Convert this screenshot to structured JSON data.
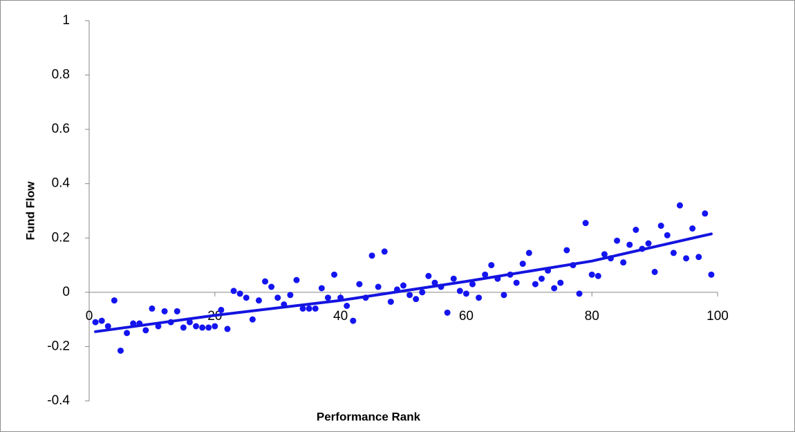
{
  "chart_data": {
    "type": "scatter",
    "x_label": "Performance Rank",
    "y_label": "Fund Flow",
    "x": [
      1,
      2,
      3,
      4,
      5,
      6,
      7,
      8,
      9,
      10,
      11,
      12,
      13,
      14,
      15,
      16,
      17,
      18,
      19,
      20,
      21,
      22,
      23,
      24,
      25,
      26,
      27,
      28,
      29,
      30,
      31,
      32,
      33,
      34,
      35,
      36,
      37,
      38,
      39,
      40,
      41,
      42,
      43,
      44,
      45,
      46,
      47,
      48,
      49,
      50,
      51,
      52,
      53,
      54,
      55,
      56,
      57,
      58,
      59,
      60,
      61,
      62,
      63,
      64,
      65,
      66,
      67,
      68,
      69,
      70,
      71,
      72,
      73,
      74,
      75,
      76,
      77,
      78,
      79,
      80,
      81,
      82,
      83,
      84,
      85,
      86,
      87,
      88,
      89,
      90,
      91,
      92,
      93,
      94,
      95,
      96,
      97,
      98,
      99
    ],
    "values": [
      -0.11,
      -0.105,
      -0.125,
      -0.03,
      -0.215,
      -0.15,
      -0.115,
      -0.115,
      -0.14,
      -0.06,
      -0.125,
      -0.07,
      -0.11,
      -0.07,
      -0.13,
      -0.11,
      -0.125,
      -0.13,
      -0.13,
      -0.125,
      -0.065,
      -0.135,
      0.005,
      -0.005,
      -0.02,
      -0.1,
      -0.03,
      0.04,
      0.02,
      -0.02,
      -0.045,
      -0.01,
      0.045,
      -0.06,
      -0.06,
      -0.06,
      0.015,
      -0.02,
      0.065,
      -0.02,
      -0.05,
      -0.105,
      0.03,
      -0.02,
      0.135,
      0.02,
      0.15,
      -0.035,
      0.01,
      0.025,
      -0.01,
      -0.025,
      0.0,
      0.06,
      0.035,
      0.02,
      -0.075,
      0.05,
      0.005,
      -0.005,
      0.03,
      -0.02,
      0.065,
      0.1,
      0.05,
      -0.01,
      0.065,
      0.035,
      0.105,
      0.145,
      0.03,
      0.05,
      0.08,
      0.015,
      0.035,
      0.155,
      0.1,
      -0.005,
      0.255,
      0.065,
      0.06,
      0.14,
      0.125,
      0.19,
      0.11,
      0.175,
      0.23,
      0.16,
      0.18,
      0.075,
      0.245,
      0.21,
      0.145,
      0.32,
      0.125,
      0.235,
      0.13,
      0.29,
      0.065
    ],
    "color": "#1414f0",
    "trend": {
      "x": [
        1,
        20,
        40,
        60,
        80,
        99
      ],
      "values": [
        -0.145,
        -0.085,
        -0.03,
        0.04,
        0.115,
        0.215
      ],
      "color": "#1414e0"
    },
    "xlim": [
      0,
      100
    ],
    "xticks": [
      0,
      20,
      40,
      60,
      80,
      100
    ],
    "ylim": [
      -0.4,
      1
    ],
    "yticks": [
      -0.4,
      -0.2,
      0,
      0.2,
      0.4,
      0.6,
      0.8,
      1
    ],
    "grid": false
  }
}
